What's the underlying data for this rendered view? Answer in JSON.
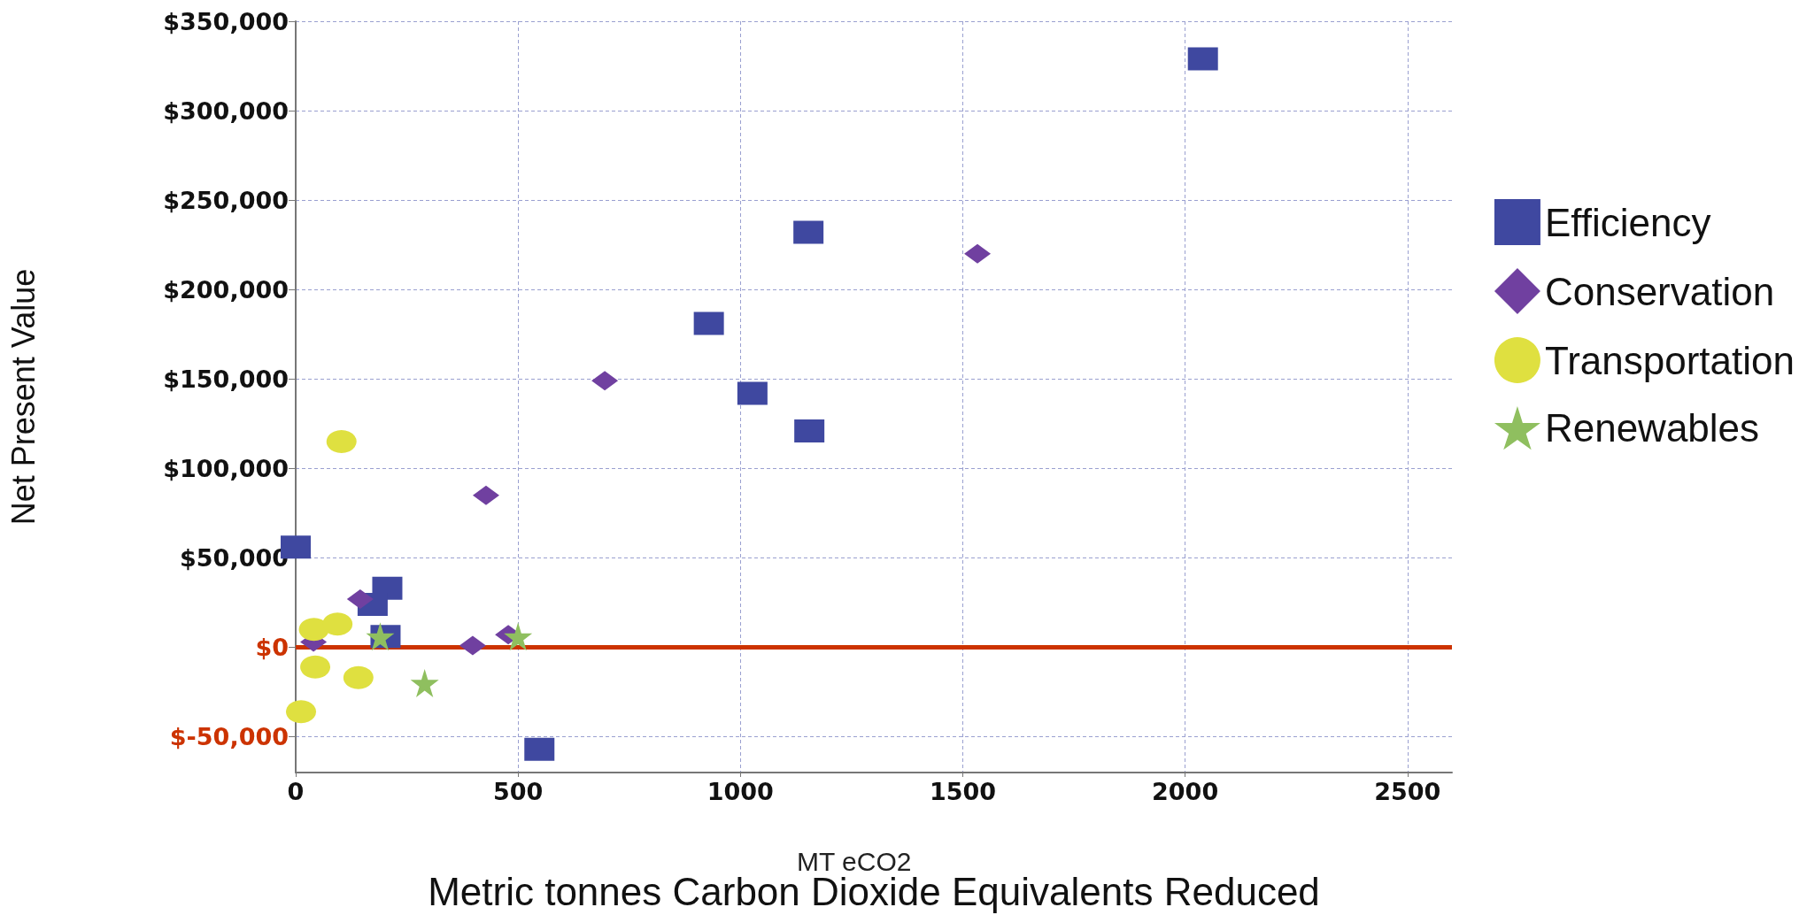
{
  "chart_data": {
    "type": "scatter",
    "xlabel": "Metric tonnes Carbon Dioxide Equivalents Reduced",
    "ylabel": "Net Present Value",
    "annotations": [
      "MT eCO2"
    ],
    "xlim": [
      0,
      2600
    ],
    "xticks": [
      0,
      500,
      1000,
      1500,
      2000,
      2500
    ],
    "ylim": [
      -70000,
      350000
    ],
    "yticks": [
      {
        "value": -50000,
        "label": "$-50,000"
      },
      {
        "value": 0,
        "label": "$0"
      },
      {
        "value": 50000,
        "label": "$50,000"
      },
      {
        "value": 100000,
        "label": "$100,000"
      },
      {
        "value": 150000,
        "label": "$150,000"
      },
      {
        "value": 200000,
        "label": "$200,000"
      },
      {
        "value": 250000,
        "label": "$250,000"
      },
      {
        "value": 300000,
        "label": "$300,000"
      },
      {
        "value": 350000,
        "label": "$350,000"
      }
    ],
    "grid": true,
    "legend": "right",
    "ref_lines": [
      {
        "axis": "y",
        "value": 0,
        "color": "#cc3300"
      }
    ],
    "series": [
      {
        "name": "Efficiency",
        "color": "#3f48a0",
        "marker": "square",
        "x": [
          0,
          206,
          173,
          202,
          548,
          2040,
          1153,
          929,
          1027,
          1155
        ],
        "values": [
          56000,
          33000,
          24000,
          6000,
          -57000,
          329000,
          232000,
          181000,
          142000,
          121000
        ]
      },
      {
        "name": "Conservation",
        "color": "#7040a0",
        "marker": "diamond",
        "x": [
          145,
          40,
          398,
          478,
          1533,
          695,
          428
        ],
        "values": [
          27000,
          3000,
          1000,
          7000,
          220000,
          149000,
          85000
        ]
      },
      {
        "name": "Transportation",
        "color": "#dfe040",
        "marker": "circle",
        "x": [
          41,
          94,
          44,
          141,
          12,
          103
        ],
        "values": [
          10000,
          13000,
          -11000,
          -17000,
          -36000,
          115000
        ]
      },
      {
        "name": "Renewables",
        "color": "#8fbf5f",
        "marker": "star",
        "x": [
          190,
          290,
          500
        ],
        "values": [
          6000,
          -20000,
          6000
        ]
      }
    ]
  }
}
